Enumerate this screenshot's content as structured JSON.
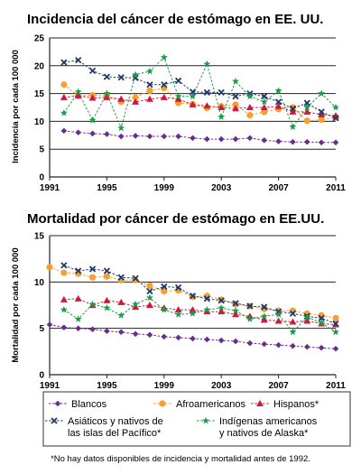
{
  "colors": {
    "blancos": "#6b2d8c",
    "afroamericanos": "#f5a033",
    "hispanos": "#cc1a3a",
    "asiaticos": "#1f3a6b",
    "indigenas": "#1d9a4a",
    "grid": "#222222"
  },
  "chart_data": [
    {
      "type": "line",
      "title": "Incidencia del cáncer de estómago en EE. UU.",
      "ylabel": "Incidencia por cada 100 000",
      "xlabel": "",
      "ylim": [
        0,
        25
      ],
      "yticks": [
        0,
        5,
        10,
        15,
        20,
        25
      ],
      "xlim": [
        1991,
        2011
      ],
      "xticks": [
        1991,
        1995,
        1999,
        2003,
        2007,
        2011
      ],
      "grid": "horizontal",
      "series": [
        {
          "name": "Blancos",
          "key": "blancos",
          "marker": "diamond",
          "x": [
            1992,
            1993,
            1994,
            1995,
            1996,
            1997,
            1998,
            1999,
            2000,
            2001,
            2002,
            2003,
            2004,
            2005,
            2006,
            2007,
            2008,
            2009,
            2010,
            2011
          ],
          "y": [
            8.3,
            8.0,
            7.8,
            7.7,
            7.3,
            7.4,
            7.3,
            7.3,
            7.3,
            7.0,
            6.8,
            6.8,
            6.8,
            7.0,
            6.6,
            6.4,
            6.3,
            6.3,
            6.2,
            6.2
          ]
        },
        {
          "name": "Afroamericanos",
          "key": "afroamericanos",
          "marker": "circle",
          "x": [
            1992,
            1993,
            1994,
            1995,
            1996,
            1997,
            1998,
            1999,
            2000,
            2001,
            2002,
            2003,
            2004,
            2005,
            2006,
            2007,
            2008,
            2009,
            2010,
            2011
          ],
          "y": [
            16.6,
            14.6,
            14.7,
            14.6,
            13.5,
            14.3,
            15.5,
            16.0,
            13.3,
            13.1,
            12.4,
            12.7,
            13.0,
            11.1,
            11.7,
            12.2,
            12.5,
            10.1,
            10.3,
            10.7
          ]
        },
        {
          "name": "Hispanos*",
          "key": "hispanos",
          "marker": "triangle",
          "x": [
            1992,
            1993,
            1994,
            1995,
            1996,
            1997,
            1998,
            1999,
            2000,
            2001,
            2002,
            2003,
            2004,
            2005,
            2006,
            2007,
            2008,
            2009,
            2010,
            2011
          ],
          "y": [
            14.3,
            14.6,
            14.2,
            14.3,
            14.0,
            13.5,
            14.0,
            14.3,
            14.0,
            13.0,
            12.8,
            12.5,
            12.3,
            12.5,
            12.5,
            12.7,
            11.7,
            11.7,
            11.2,
            11.0
          ]
        },
        {
          "name": "Asiáticos y nativos de las islas del Pacífico*",
          "key": "asiaticos",
          "marker": "x",
          "x": [
            1992,
            1993,
            1994,
            1995,
            1996,
            1997,
            1998,
            1999,
            2000,
            2001,
            2002,
            2003,
            2004,
            2005,
            2006,
            2007,
            2008,
            2009,
            2010,
            2011
          ],
          "y": [
            20.6,
            21.0,
            19.1,
            18.0,
            17.9,
            17.8,
            16.6,
            16.6,
            17.3,
            15.3,
            15.2,
            15.2,
            14.5,
            15.0,
            14.5,
            13.5,
            12.3,
            13.3,
            11.7,
            10.6
          ]
        },
        {
          "name": "Indígenas americanos y nativos de Alaska*",
          "key": "indigenas",
          "marker": "star",
          "x": [
            1992,
            1993,
            1994,
            1995,
            1996,
            1997,
            1998,
            1999,
            2000,
            2001,
            2002,
            2003,
            2004,
            2005,
            2006,
            2007,
            2008,
            2009,
            2010,
            2011
          ],
          "y": [
            11.5,
            15.3,
            10.2,
            15.0,
            8.8,
            18.4,
            19.0,
            21.5,
            14.5,
            14.5,
            20.3,
            10.8,
            17.2,
            14.5,
            13.5,
            15.5,
            9.0,
            12.5,
            15.0,
            12.5
          ]
        }
      ]
    },
    {
      "type": "line",
      "title": "Mortalidad por cáncer de estómago en EE.UU.",
      "ylabel": "Mortalidad por cada 100 000",
      "xlabel": "",
      "ylim": [
        0,
        15
      ],
      "yticks": [
        0,
        5,
        10,
        15
      ],
      "xlim": [
        1991,
        2011
      ],
      "xticks": [
        1991,
        1995,
        1999,
        2003,
        2007,
        2011
      ],
      "grid": "horizontal",
      "series": [
        {
          "name": "Blancos",
          "key": "blancos",
          "marker": "diamond",
          "x": [
            1991,
            1992,
            1993,
            1994,
            1995,
            1996,
            1997,
            1998,
            1999,
            2000,
            2001,
            2002,
            2003,
            2004,
            2005,
            2006,
            2007,
            2008,
            2009,
            2010,
            2011
          ],
          "y": [
            5.4,
            5.1,
            5.0,
            4.9,
            4.7,
            4.6,
            4.4,
            4.3,
            4.1,
            4.0,
            3.9,
            3.8,
            3.7,
            3.6,
            3.4,
            3.3,
            3.2,
            3.1,
            3.0,
            2.9,
            2.8
          ]
        },
        {
          "name": "Afroamericanos",
          "key": "afroamericanos",
          "marker": "circle",
          "x": [
            1991,
            1992,
            1993,
            1994,
            1995,
            1996,
            1997,
            1998,
            1999,
            2000,
            2001,
            2002,
            2003,
            2004,
            2005,
            2006,
            2007,
            2008,
            2009,
            2010,
            2011
          ],
          "y": [
            11.6,
            11.0,
            10.9,
            10.5,
            10.6,
            10.2,
            10.2,
            9.6,
            9.0,
            9.1,
            8.4,
            8.5,
            8.1,
            7.6,
            7.4,
            7.1,
            6.9,
            6.9,
            6.6,
            6.4,
            6.1
          ]
        },
        {
          "name": "Hispanos*",
          "key": "hispanos",
          "marker": "triangle",
          "x": [
            1992,
            1993,
            1994,
            1995,
            1996,
            1997,
            1998,
            1999,
            2000,
            2001,
            2002,
            2003,
            2004,
            2005,
            2006,
            2007,
            2008,
            2009,
            2010,
            2011
          ],
          "y": [
            8.1,
            8.2,
            7.5,
            8.0,
            7.8,
            7.3,
            7.5,
            7.2,
            7.0,
            7.0,
            6.8,
            6.8,
            6.5,
            6.3,
            5.9,
            5.8,
            5.7,
            5.8,
            5.5,
            5.4
          ]
        },
        {
          "name": "Asiáticos y nativos de las islas del Pacífico*",
          "key": "asiaticos",
          "marker": "x",
          "x": [
            1992,
            1993,
            1994,
            1995,
            1996,
            1997,
            1998,
            1999,
            2000,
            2001,
            2002,
            2003,
            2004,
            2005,
            2006,
            2007,
            2008,
            2009,
            2010,
            2011
          ],
          "y": [
            11.8,
            11.2,
            11.4,
            11.2,
            10.5,
            10.4,
            9.0,
            9.5,
            9.4,
            8.5,
            8.2,
            8.0,
            7.7,
            7.4,
            7.3,
            6.8,
            6.6,
            6.3,
            6.1,
            5.5
          ]
        },
        {
          "name": "Indígenas americanos y nativos de Alaska*",
          "key": "indigenas",
          "marker": "star",
          "x": [
            1992,
            1993,
            1994,
            1995,
            1996,
            1997,
            1998,
            1999,
            2000,
            2001,
            2002,
            2003,
            2004,
            2005,
            2006,
            2007,
            2008,
            2009,
            2010,
            2011
          ],
          "y": [
            7.0,
            6.0,
            7.6,
            7.2,
            6.4,
            7.6,
            8.3,
            7.0,
            6.5,
            6.6,
            7.0,
            7.2,
            6.9,
            6.0,
            6.3,
            6.5,
            4.6,
            6.2,
            5.6,
            4.6
          ]
        }
      ]
    }
  ],
  "legend": {
    "items": [
      {
        "key": "blancos",
        "marker": "diamond",
        "lines": [
          "Blancos"
        ]
      },
      {
        "key": "afroamericanos",
        "marker": "circle",
        "lines": [
          "Afroamericanos"
        ]
      },
      {
        "key": "hispanos",
        "marker": "triangle",
        "lines": [
          "Hispanos*"
        ]
      },
      {
        "key": "asiaticos",
        "marker": "x",
        "lines": [
          "Asiáticos y nativos de",
          "las islas del Pacífico*"
        ]
      },
      {
        "key": "indigenas",
        "marker": "star",
        "lines": [
          "Indígenas americanos",
          "y nativos de Alaska*"
        ]
      }
    ]
  },
  "footnote": "*No hay datos disponibles de incidencia y mortalidad antes de 1992."
}
